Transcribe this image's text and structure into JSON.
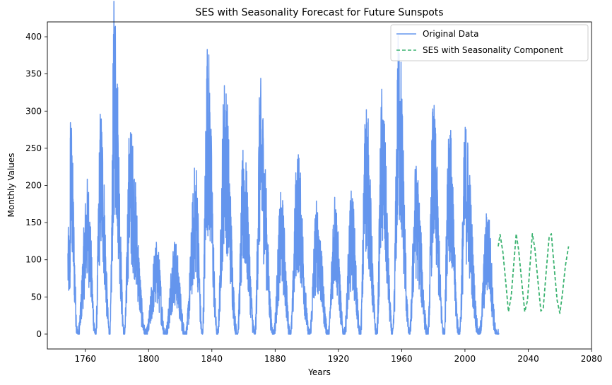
{
  "chart_data": {
    "type": "line",
    "title": "SES with Seasonality Forecast for Future Sunspots",
    "xlabel": "Years",
    "ylabel": "Monthly Values",
    "xlim": [
      1736,
      2080
    ],
    "ylim": [
      -20,
      420
    ],
    "xticks": [
      1760,
      1800,
      1840,
      1880,
      1920,
      1960,
      2000,
      2040,
      2080
    ],
    "yticks": [
      0,
      50,
      100,
      150,
      200,
      250,
      300,
      350,
      400
    ],
    "grid": false,
    "legend_position": "top-right",
    "series": [
      {
        "name": "Original Data",
        "color": "#6495ED",
        "style": "solid",
        "cycle_peaks": [
          {
            "year": 1750.5,
            "value": 264
          },
          {
            "year": 1761.5,
            "value": 179
          },
          {
            "year": 1769.7,
            "value": 264
          },
          {
            "year": 1778.4,
            "value": 398
          },
          {
            "year": 1788.1,
            "value": 242
          },
          {
            "year": 1805.2,
            "value": 104
          },
          {
            "year": 1816.4,
            "value": 108
          },
          {
            "year": 1829.9,
            "value": 200
          },
          {
            "year": 1837.2,
            "value": 344
          },
          {
            "year": 1848.1,
            "value": 301
          },
          {
            "year": 1860.1,
            "value": 222
          },
          {
            "year": 1870.6,
            "value": 294
          },
          {
            "year": 1883.9,
            "value": 162
          },
          {
            "year": 1894.1,
            "value": 215
          },
          {
            "year": 1906.2,
            "value": 152
          },
          {
            "year": 1917.6,
            "value": 165
          },
          {
            "year": 1928.4,
            "value": 165
          },
          {
            "year": 1937.4,
            "value": 276
          },
          {
            "year": 1947.5,
            "value": 285
          },
          {
            "year": 1958.2,
            "value": 360
          },
          {
            "year": 1968.9,
            "value": 196
          },
          {
            "year": 1979.9,
            "value": 267
          },
          {
            "year": 1989.6,
            "value": 262
          },
          {
            "year": 2000.3,
            "value": 245
          },
          {
            "year": 2014.3,
            "value": 146
          }
        ],
        "cycle_minima": [
          {
            "year": 1755.2,
            "value": 0
          },
          {
            "year": 1766.5,
            "value": 0
          },
          {
            "year": 1775.5,
            "value": 0
          },
          {
            "year": 1784.7,
            "value": 0
          },
          {
            "year": 1798.3,
            "value": 0
          },
          {
            "year": 1810.6,
            "value": 0
          },
          {
            "year": 1823.3,
            "value": 0
          },
          {
            "year": 1833.9,
            "value": 0
          },
          {
            "year": 1843.5,
            "value": 0
          },
          {
            "year": 1856.0,
            "value": 0
          },
          {
            "year": 1867.2,
            "value": 0
          },
          {
            "year": 1878.9,
            "value": 0
          },
          {
            "year": 1889.6,
            "value": 0
          },
          {
            "year": 1901.7,
            "value": 0
          },
          {
            "year": 1913.6,
            "value": 0
          },
          {
            "year": 1923.6,
            "value": 0
          },
          {
            "year": 1933.8,
            "value": 0
          },
          {
            "year": 1944.2,
            "value": 0
          },
          {
            "year": 1954.3,
            "value": 0
          },
          {
            "year": 1964.9,
            "value": 0
          },
          {
            "year": 1976.5,
            "value": 0
          },
          {
            "year": 1986.8,
            "value": 0
          },
          {
            "year": 1996.4,
            "value": 0
          },
          {
            "year": 2008.9,
            "value": 0
          },
          {
            "year": 2019.9,
            "value": 0
          }
        ]
      },
      {
        "name": "SES with Seasonality Component",
        "color": "#3CB371",
        "style": "dashed",
        "x": [
          2021,
          2022.2,
          2024,
          2026,
          2027.5,
          2029.3,
          2031,
          2032.4,
          2034,
          2036,
          2037.8,
          2039.5,
          2041.2,
          2042.6,
          2044.2,
          2046.2,
          2048,
          2049.5,
          2051.5,
          2053.2,
          2054.6,
          2056.4,
          2058.3,
          2060,
          2061.5,
          2063.5,
          2065.5
        ],
        "y": [
          118,
          134,
          110,
          65,
          30,
          52,
          98,
          135,
          112,
          68,
          30,
          45,
          95,
          135,
          115,
          70,
          31,
          35,
          88,
          130,
          135,
          90,
          45,
          28,
          52,
          92,
          118
        ]
      }
    ]
  }
}
